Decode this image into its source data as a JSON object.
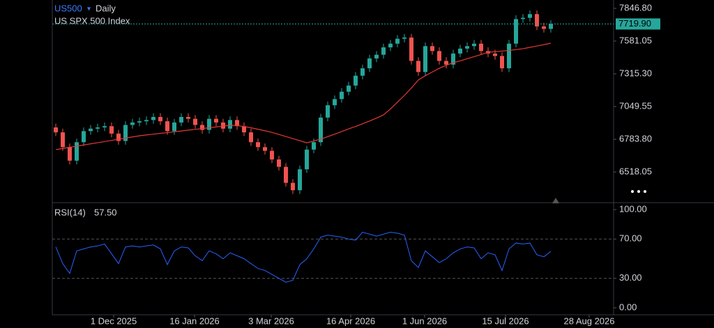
{
  "chart_data": [
    {
      "type": "candlestick",
      "symbol": "US500",
      "interval": "Daily",
      "subtitle": "US SPX 500 Index",
      "up_color": "#26a69a",
      "down_color": "#ef5350",
      "open": [
        6880,
        6840,
        6720,
        6610,
        6760,
        6850,
        6870,
        6880,
        6890,
        6830,
        6770,
        6900,
        6920,
        6930,
        6940,
        6965,
        6930,
        6850,
        6920,
        6965,
        6950,
        6900,
        6860,
        6950,
        6920,
        6870,
        6940,
        6890,
        6840,
        6760,
        6720,
        6690,
        6620,
        6560,
        6430,
        6370,
        6540,
        6700,
        6760,
        6960,
        7060,
        7110,
        7170,
        7220,
        7300,
        7360,
        7440,
        7470,
        7530,
        7560,
        7600,
        7610,
        7420,
        7330,
        7540,
        7500,
        7420,
        7390,
        7480,
        7520,
        7540,
        7560,
        7500,
        7480,
        7460,
        7360,
        7560,
        7760,
        7770,
        7800,
        7700,
        7680
      ],
      "high": [
        6910,
        6870,
        6750,
        6790,
        6880,
        6900,
        6910,
        6920,
        6920,
        6860,
        6930,
        6950,
        6960,
        6970,
        6995,
        6995,
        6960,
        6950,
        6995,
        6995,
        6980,
        6930,
        6980,
        6980,
        6950,
        6970,
        6970,
        6920,
        6870,
        6790,
        6750,
        6720,
        6650,
        6590,
        6460,
        6570,
        6730,
        6790,
        6990,
        7090,
        7140,
        7200,
        7250,
        7330,
        7390,
        7470,
        7500,
        7560,
        7590,
        7630,
        7640,
        7640,
        7450,
        7570,
        7570,
        7530,
        7450,
        7510,
        7550,
        7570,
        7590,
        7590,
        7530,
        7510,
        7490,
        7590,
        7790,
        7800,
        7830,
        7830,
        7730,
        7750
      ],
      "low": [
        6810,
        6690,
        6580,
        6580,
        6730,
        6820,
        6840,
        6850,
        6800,
        6740,
        6740,
        6870,
        6890,
        6900,
        6910,
        6900,
        6820,
        6820,
        6890,
        6920,
        6870,
        6830,
        6830,
        6890,
        6840,
        6840,
        6860,
        6810,
        6730,
        6690,
        6660,
        6590,
        6530,
        6400,
        6340,
        6340,
        6510,
        6670,
        6730,
        6930,
        7030,
        7080,
        7140,
        7190,
        7270,
        7330,
        7410,
        7440,
        7500,
        7530,
        7570,
        7390,
        7300,
        7300,
        7470,
        7390,
        7360,
        7360,
        7450,
        7490,
        7510,
        7470,
        7450,
        7430,
        7330,
        7330,
        7530,
        7730,
        7740,
        7670,
        7650,
        7650
      ],
      "close": [
        6840,
        6720,
        6610,
        6760,
        6850,
        6870,
        6880,
        6890,
        6830,
        6770,
        6900,
        6920,
        6930,
        6940,
        6965,
        6930,
        6850,
        6920,
        6965,
        6950,
        6900,
        6860,
        6950,
        6920,
        6870,
        6940,
        6890,
        6840,
        6760,
        6720,
        6690,
        6620,
        6560,
        6430,
        6370,
        6540,
        6700,
        6760,
        6960,
        7060,
        7110,
        7170,
        7220,
        7300,
        7360,
        7440,
        7470,
        7530,
        7560,
        7600,
        7610,
        7420,
        7330,
        7540,
        7500,
        7420,
        7390,
        7480,
        7520,
        7540,
        7560,
        7500,
        7480,
        7460,
        7360,
        7560,
        7760,
        7770,
        7800,
        7700,
        7680,
        7719.9
      ],
      "ma": {
        "color": "#e53935",
        "values": [
          6700,
          6709,
          6719,
          6728,
          6737,
          6747,
          6756,
          6765,
          6775,
          6784,
          6793,
          6803,
          6812,
          6819,
          6825,
          6832,
          6838,
          6845,
          6851,
          6858,
          6864,
          6871,
          6877,
          6884,
          6890,
          6897,
          6895,
          6888,
          6877,
          6865,
          6853,
          6840,
          6823,
          6806,
          6789,
          6772,
          6755,
          6770,
          6785,
          6805,
          6825,
          6846,
          6868,
          6888,
          6910,
          6932,
          6956,
          6982,
          7030,
          7085,
          7140,
          7200,
          7265,
          7300,
          7330,
          7360,
          7385,
          7406,
          7420,
          7438,
          7455,
          7472,
          7490,
          7495,
          7500,
          7505,
          7512,
          7519,
          7530,
          7541,
          7552,
          7564
        ]
      },
      "last_value": {
        "value": 7719.9,
        "label": "7719.90"
      },
      "last_color": "#26a69a",
      "xlim": [
        -0.5,
        80
      ],
      "ylim": [
        6274.9,
        7914.6
      ],
      "yticks": [
        {
          "value": 7846.8,
          "label": "7846.80"
        },
        {
          "value": 7581.05,
          "label": "7581.05"
        },
        {
          "value": 7315.3,
          "label": "7315.30"
        },
        {
          "value": 7049.55,
          "label": "7049.55"
        },
        {
          "value": 6783.8,
          "label": "6783.80"
        },
        {
          "value": 6518.05,
          "label": "6518.05"
        }
      ]
    },
    {
      "type": "line",
      "series": [
        {
          "name": "RSI(14)",
          "color": "#2962ff",
          "values": [
            62,
            45,
            35,
            58,
            60,
            62,
            63,
            65,
            55,
            45,
            62,
            63,
            62,
            63,
            64,
            60,
            44,
            58,
            62,
            61,
            53,
            48,
            58,
            55,
            50,
            56,
            53,
            50,
            45,
            40,
            38,
            34,
            30,
            26,
            28,
            44,
            50,
            60,
            72,
            74,
            73,
            72,
            70,
            69,
            77,
            75,
            73,
            75,
            77,
            76,
            74,
            48,
            41,
            58,
            52,
            46,
            50,
            56,
            60,
            62,
            61,
            50,
            56,
            54,
            38,
            60,
            66,
            65,
            66,
            54,
            52,
            57.5
          ]
        }
      ],
      "last_value": {
        "value": 57.5,
        "label": "57.50"
      },
      "levels": [
        70,
        30
      ],
      "xlim": [
        -0.5,
        80
      ],
      "ylim": [
        -6.4,
        106.4
      ],
      "yticks": [
        {
          "value": 100,
          "label": "100.00"
        },
        {
          "value": 70,
          "label": "70.00"
        },
        {
          "value": 30,
          "label": "30.00"
        },
        {
          "value": 0,
          "label": "0.00"
        }
      ],
      "xticks": [
        {
          "value": 8.3,
          "label": "1 Dec 2025"
        },
        {
          "value": 19.9,
          "label": "16 Jan 2026"
        },
        {
          "value": 30.9,
          "label": "3 Mar 2026"
        },
        {
          "value": 42.3,
          "label": "16 Apr 2026"
        },
        {
          "value": 52.9,
          "label": "1 Jun 2026"
        },
        {
          "value": 64.5,
          "label": "15 Jul 2026"
        },
        {
          "value": 76.5,
          "label": "28 Aug 2026"
        }
      ]
    }
  ]
}
